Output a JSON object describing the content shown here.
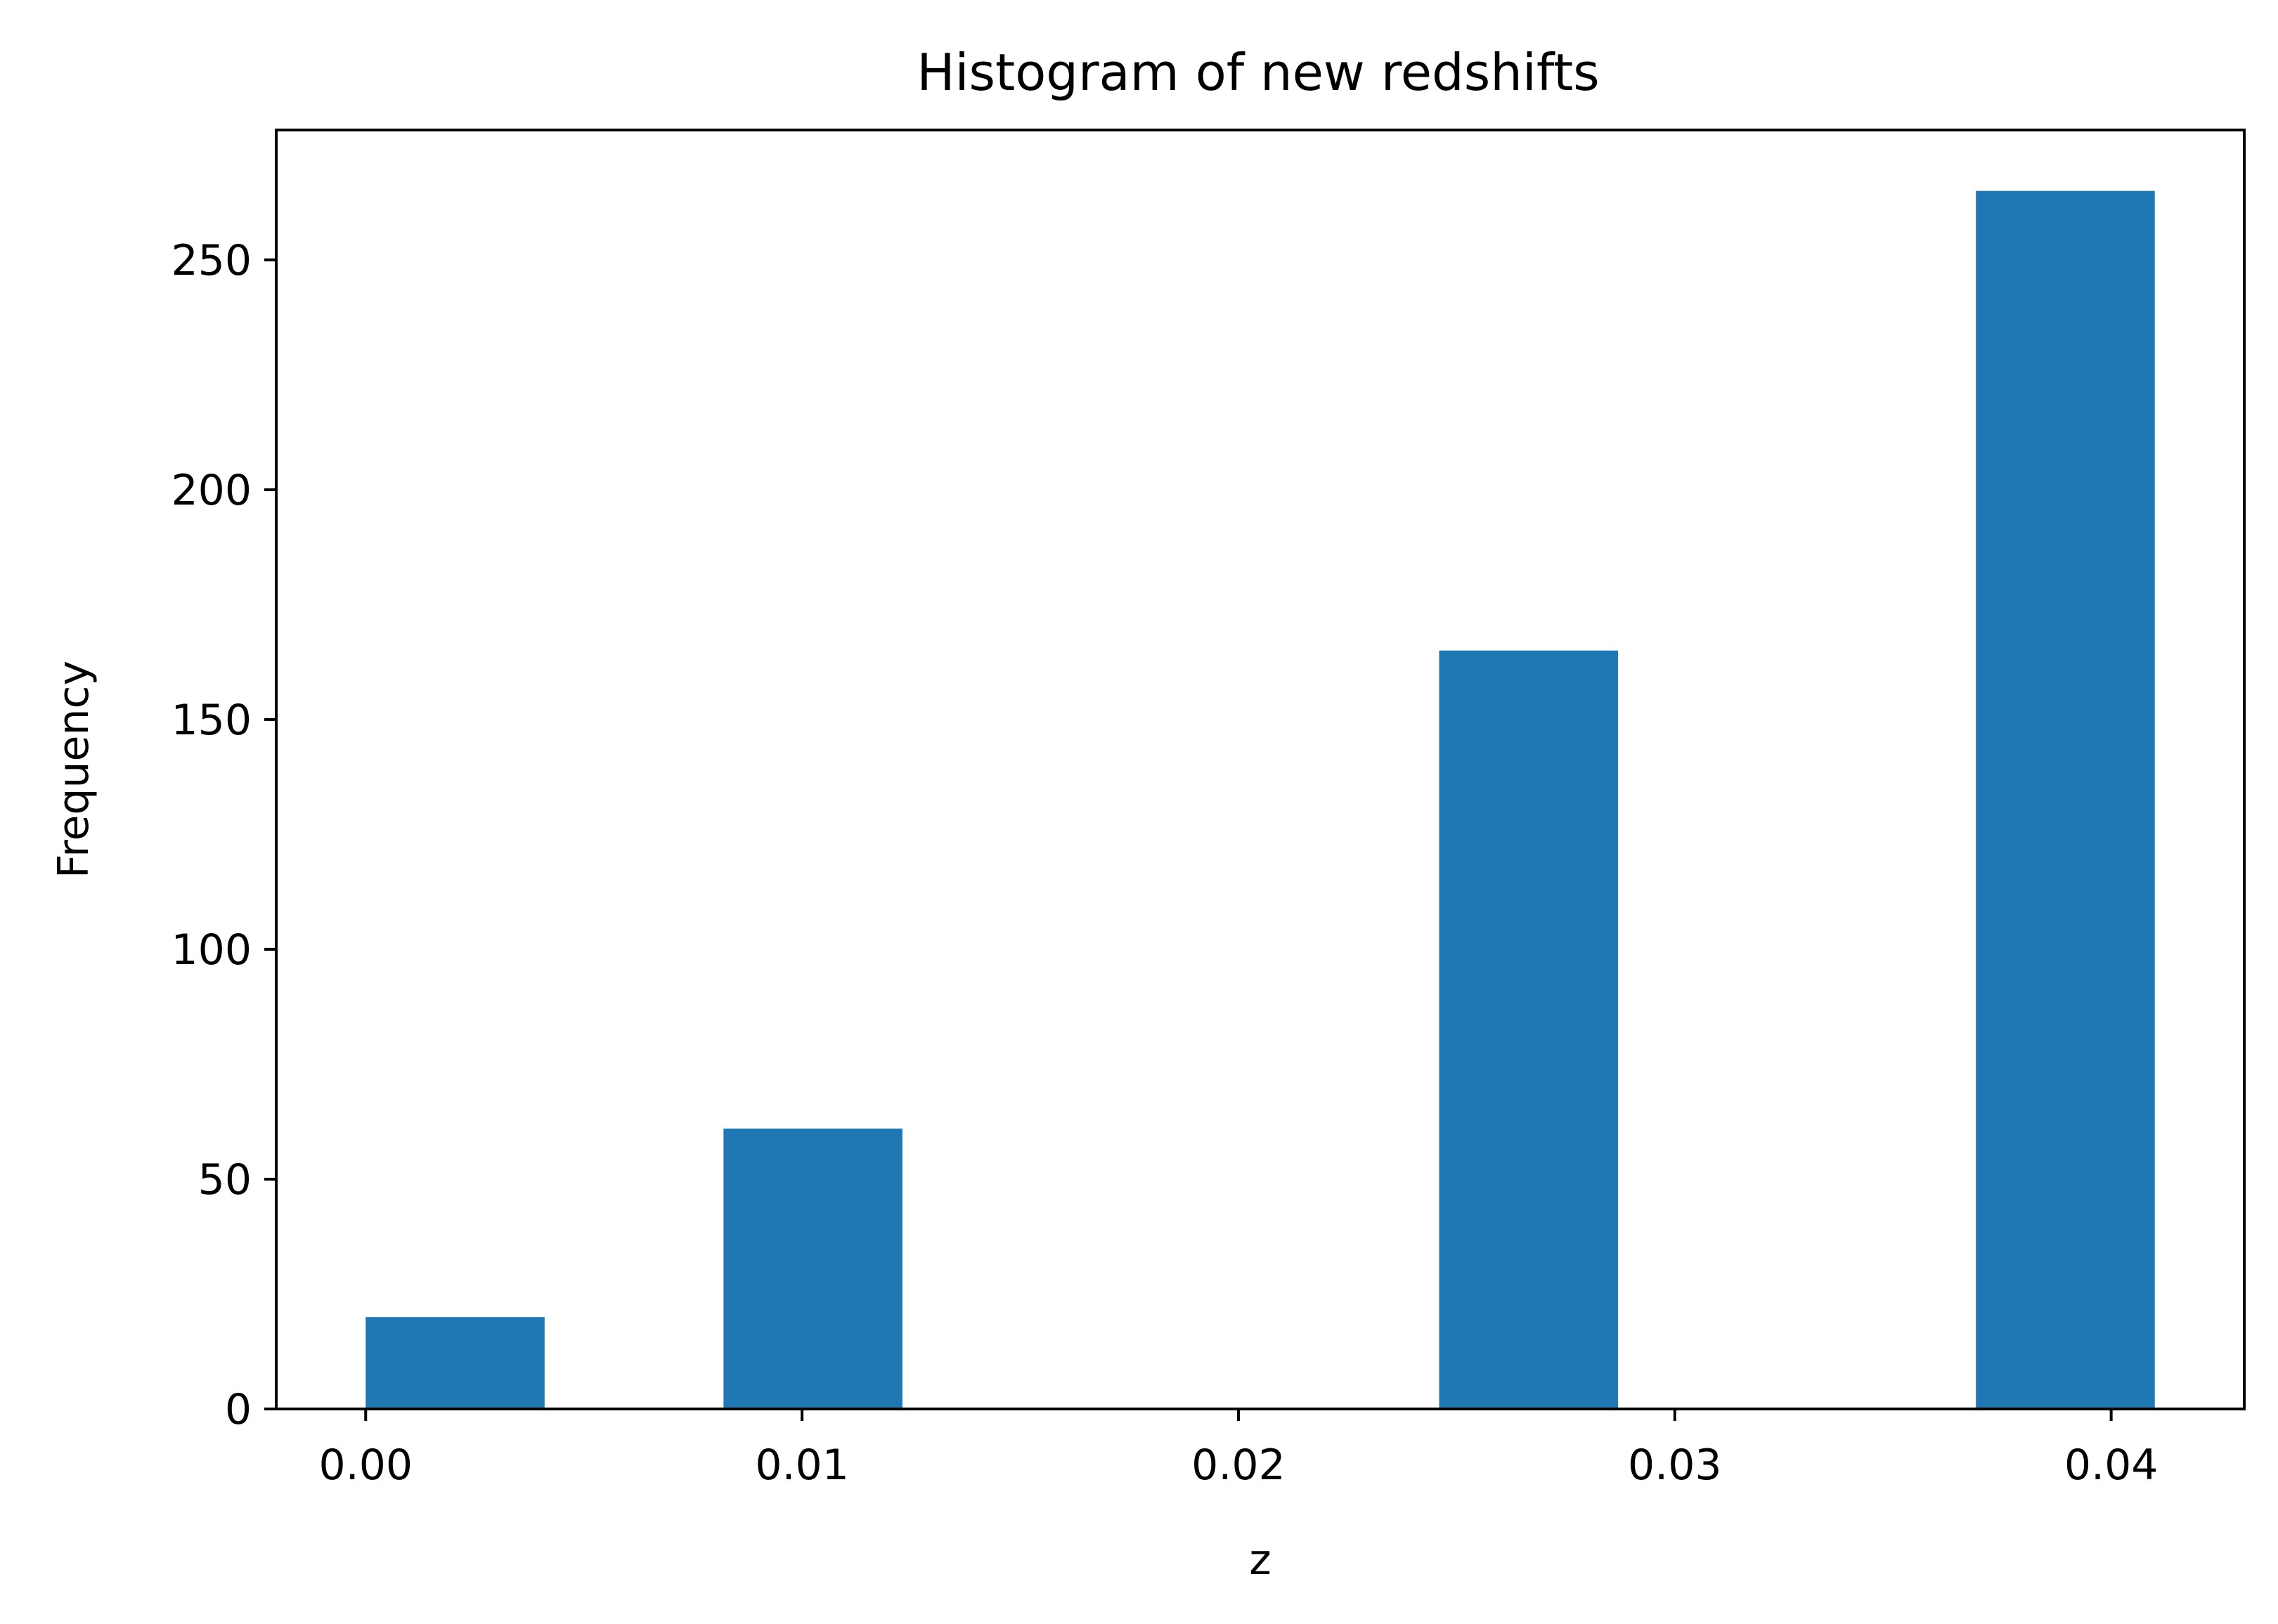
{
  "chart_data": {
    "type": "bar",
    "title": "Histogram of new redshifts",
    "xlabel": "z",
    "ylabel": "Frequency",
    "bins": [
      {
        "x0": 0.0,
        "x1": 0.0041,
        "value": 20
      },
      {
        "x0": 0.0082,
        "x1": 0.0123,
        "value": 61
      },
      {
        "x0": 0.0123,
        "x1": 0.0164,
        "value": 0
      },
      {
        "x0": 0.0164,
        "x1": 0.0205,
        "value": 0
      },
      {
        "x0": 0.0205,
        "x1": 0.0246,
        "value": 0
      },
      {
        "x0": 0.0246,
        "x1": 0.0287,
        "value": 165
      },
      {
        "x0": 0.0287,
        "x1": 0.0328,
        "value": 0
      },
      {
        "x0": 0.0328,
        "x1": 0.0369,
        "value": 0
      },
      {
        "x0": 0.0369,
        "x1": 0.041,
        "value": 265
      }
    ],
    "xlim": [
      -0.00205,
      0.04305
    ],
    "ylim": [
      0,
      278.25
    ],
    "xticks": [
      0.0,
      0.01,
      0.02,
      0.03,
      0.04
    ],
    "xtick_labels": [
      "0.00",
      "0.01",
      "0.02",
      "0.03",
      "0.04"
    ],
    "yticks": [
      0,
      50,
      100,
      150,
      200,
      250
    ],
    "ytick_labels": [
      "0",
      "50",
      "100",
      "150",
      "200",
      "250"
    ],
    "bar_color": "#1f77b4",
    "grid": false,
    "legend": "none"
  }
}
